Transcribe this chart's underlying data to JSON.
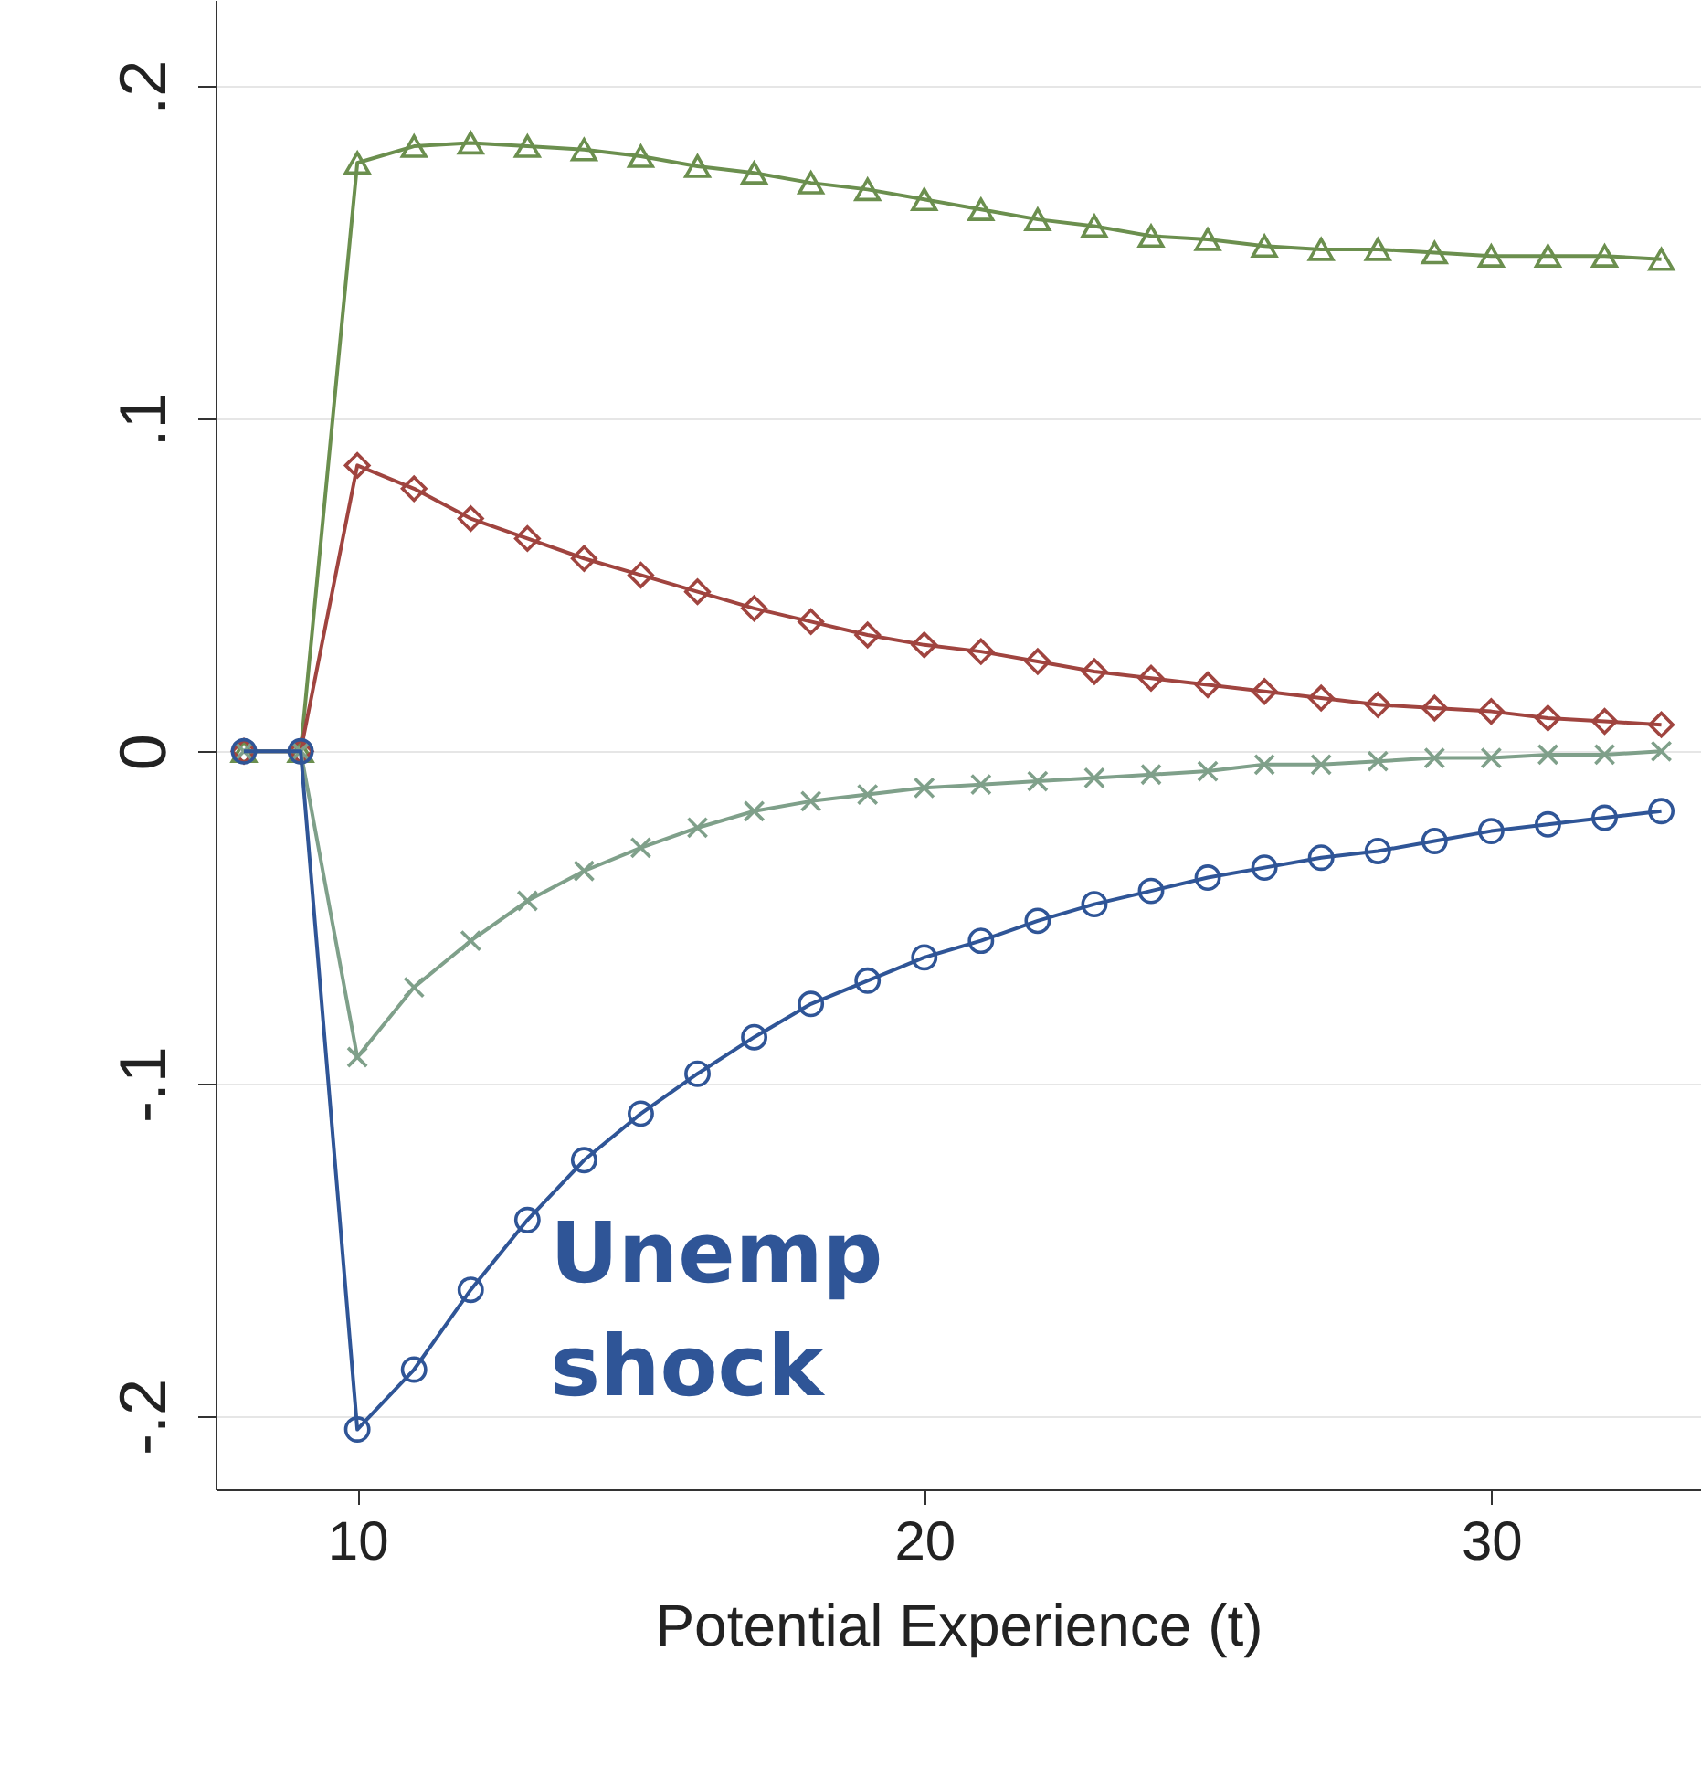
{
  "chart_data": {
    "type": "line",
    "xlabel": "Potential Experience (t)",
    "x": [
      8,
      9,
      10,
      11,
      12,
      13,
      14,
      15,
      16,
      17,
      18,
      19,
      20,
      21,
      22,
      23,
      24,
      25,
      26,
      27,
      28,
      29,
      30,
      31,
      32,
      33
    ],
    "series": [
      {
        "color": "#6b8f4e",
        "marker": "triangle",
        "values": [
          0,
          0,
          0.177,
          0.182,
          0.183,
          0.182,
          0.181,
          0.179,
          0.176,
          0.174,
          0.171,
          0.169,
          0.166,
          0.163,
          0.16,
          0.158,
          0.155,
          0.154,
          0.152,
          0.151,
          0.151,
          0.15,
          0.149,
          0.149,
          0.149,
          0.148
        ]
      },
      {
        "color": "#a0443f",
        "marker": "diamond",
        "values": [
          0,
          0,
          0.086,
          0.079,
          0.07,
          0.064,
          0.058,
          0.053,
          0.048,
          0.043,
          0.039,
          0.035,
          0.032,
          0.03,
          0.027,
          0.024,
          0.022,
          0.02,
          0.018,
          0.016,
          0.014,
          0.013,
          0.012,
          0.01,
          0.009,
          0.008
        ]
      },
      {
        "color": "#7fa08a",
        "marker": "cross",
        "values": [
          0,
          0,
          -0.092,
          -0.071,
          -0.057,
          -0.045,
          -0.036,
          -0.029,
          -0.023,
          -0.018,
          -0.015,
          -0.013,
          -0.011,
          -0.01,
          -0.009,
          -0.008,
          -0.007,
          -0.006,
          -0.004,
          -0.004,
          -0.003,
          -0.002,
          -0.002,
          -0.001,
          -0.001,
          0
        ]
      },
      {
        "name": "Unemp shock",
        "color": "#2f5597",
        "marker": "circle",
        "values": [
          0,
          0,
          -0.204,
          -0.186,
          -0.162,
          -0.141,
          -0.123,
          -0.109,
          -0.097,
          -0.086,
          -0.076,
          -0.069,
          -0.062,
          -0.057,
          -0.051,
          -0.046,
          -0.042,
          -0.038,
          -0.035,
          -0.032,
          -0.03,
          -0.027,
          -0.024,
          -0.022,
          -0.02,
          -0.018
        ]
      }
    ],
    "xlim": [
      7.5,
      33.7
    ],
    "xticks": [
      10,
      20,
      30
    ],
    "ylim": [
      -0.222,
      0.226
    ],
    "yticks": [
      {
        "value": -0.2,
        "label": "-.2"
      },
      {
        "value": -0.1,
        "label": "-.1"
      },
      0,
      {
        "value": 0.1,
        "label": ".1"
      },
      {
        "value": 0.2,
        "label": ".2"
      }
    ],
    "grid": "y"
  }
}
